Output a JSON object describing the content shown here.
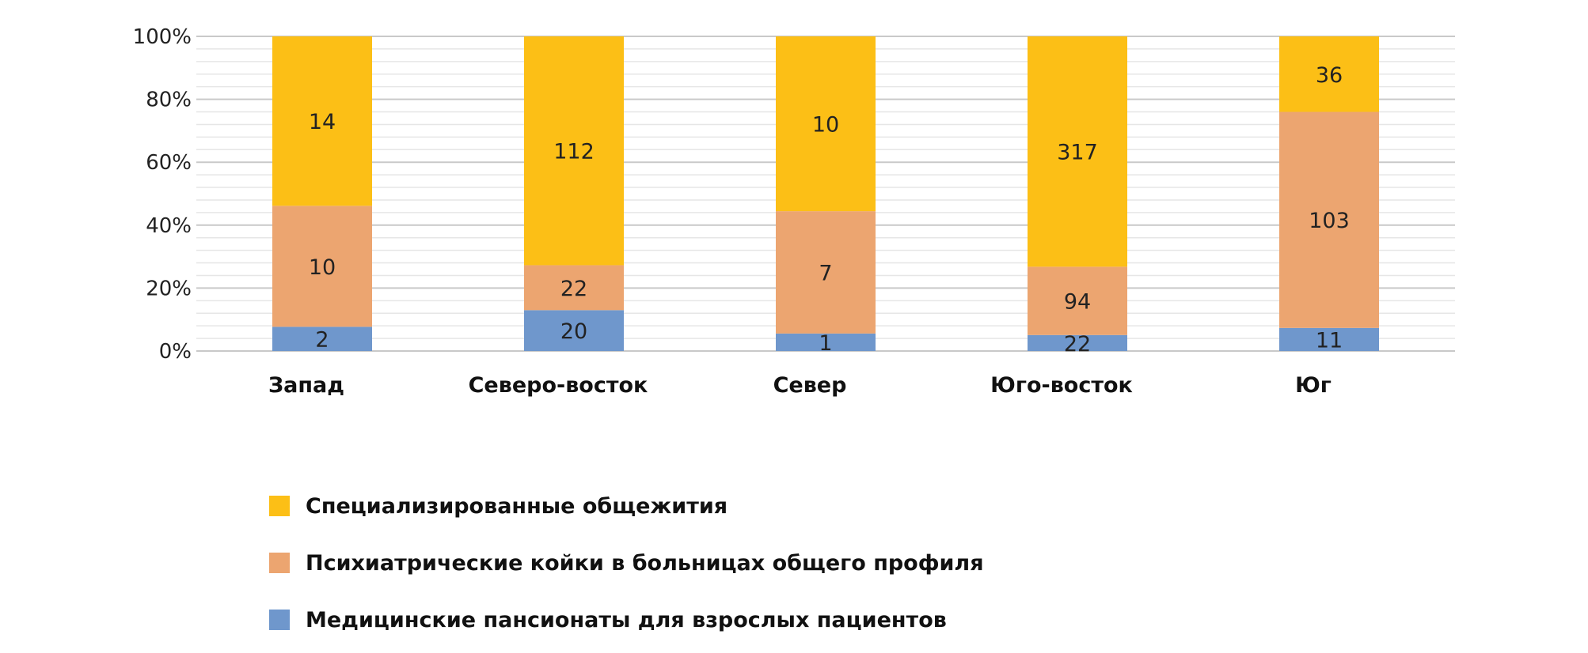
{
  "chart_data": {
    "type": "bar",
    "stacked": true,
    "normalized": true,
    "categories": [
      "Запад",
      "Северо-восток",
      "Север",
      "Юго-восток",
      "Юг"
    ],
    "series": [
      {
        "name": "Медицинские пансионаты для взрослых пациентов",
        "color": "#6f97cc",
        "values": [
          2,
          20,
          1,
          22,
          11
        ]
      },
      {
        "name": "Психиатрические койки в больницах общего профиля",
        "color": "#eca570",
        "values": [
          10,
          22,
          7,
          94,
          103
        ]
      },
      {
        "name": "Специализированные общежития",
        "color": "#fcbf16",
        "values": [
          14,
          112,
          10,
          317,
          36
        ]
      }
    ],
    "y_ticks": [
      "0%",
      "20%",
      "40%",
      "60%",
      "80%",
      "100%"
    ],
    "ylim": [
      0,
      100
    ],
    "grid": true,
    "legend_position": "bottom",
    "legend_order": [
      2,
      1,
      0
    ]
  }
}
